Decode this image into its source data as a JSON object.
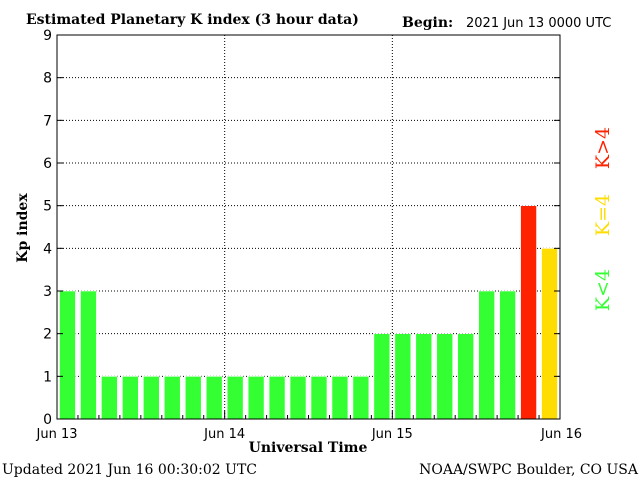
{
  "chart_data": {
    "type": "bar",
    "title": "Estimated Planetary K index (3 hour data)",
    "begin_label": "Begin:",
    "begin_value": "2021 Jun 13 0000 UTC",
    "xlabel": "Universal Time",
    "ylabel": "Kp index",
    "ylim": [
      0,
      9
    ],
    "yticks": [
      "0",
      "1",
      "2",
      "3",
      "4",
      "5",
      "6",
      "7",
      "8",
      "9"
    ],
    "xticks": [
      "Jun 13",
      "Jun 14",
      "Jun 15",
      "Jun 16"
    ],
    "grid": true,
    "values": [
      3,
      3,
      1,
      1,
      1,
      1,
      1,
      1,
      1,
      1,
      1,
      1,
      1,
      1,
      1,
      2,
      2,
      2,
      2,
      2,
      3,
      3,
      5,
      4
    ],
    "colors": {
      "below4": "#33ff33",
      "equal4": "#ffdd00",
      "above4": "#ff2200"
    },
    "legend": {
      "below": "K<4",
      "equal": "K=4",
      "above": "K>4"
    }
  },
  "footer": {
    "updated": "Updated 2021 Jun 16 00:30:02 UTC",
    "source": "NOAA/SWPC Boulder, CO USA"
  }
}
